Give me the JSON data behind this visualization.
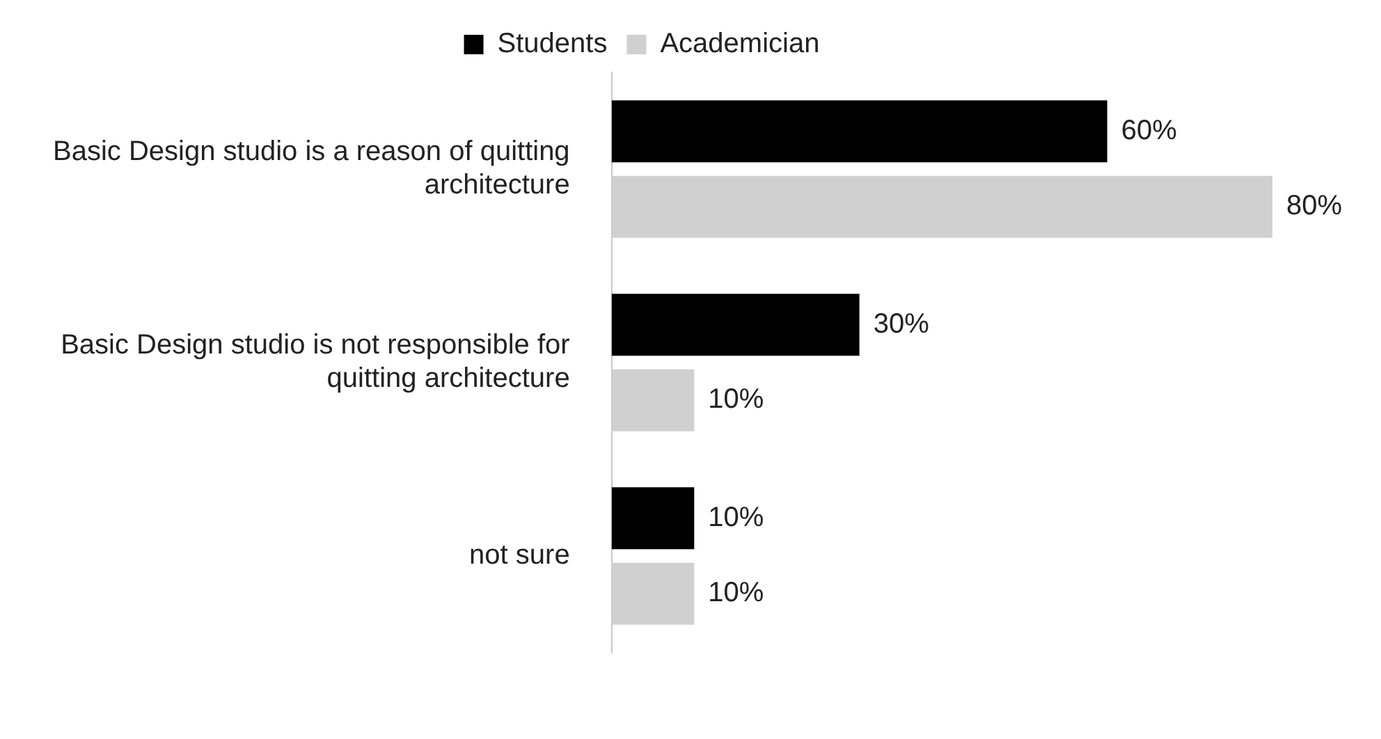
{
  "chart_data": {
    "type": "bar",
    "orientation": "horizontal",
    "categories": [
      "Basic Design studio is a reason of quitting architecture",
      "Basic Design studio is not responsible for quitting architecture",
      "not sure"
    ],
    "series": [
      {
        "name": "Students",
        "color": "#000000",
        "values": [
          60,
          30,
          10
        ],
        "value_labels": [
          "60%",
          "30%",
          "10%"
        ]
      },
      {
        "name": "Academician",
        "color": "#d0d0d0",
        "values": [
          80,
          10,
          10
        ],
        "value_labels": [
          "80%",
          "10%",
          "10%"
        ]
      }
    ],
    "legend": "top",
    "grid": false
  }
}
